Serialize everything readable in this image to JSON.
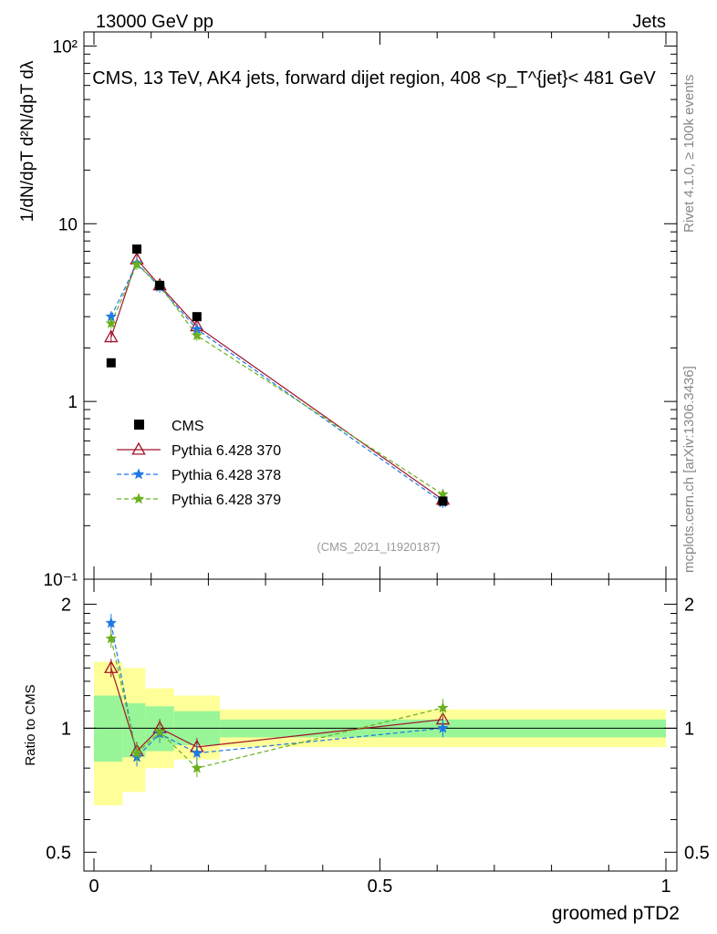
{
  "header": {
    "energy_label": "13000 GeV pp",
    "category": "Jets",
    "analysis_tag": "(CMS_2021_I1920187)"
  },
  "side_labels": {
    "rivet": "Rivet 4.1.0, ≥ 100k events",
    "mcplots": "mcplots.cern.ch [arXiv:1306.3436]"
  },
  "chart_data": {
    "type": "line",
    "title": "CMS, 13 TeV, AK4 jets, forward dijet region, 408 <p_T^{jet}< 481 GeV",
    "xlabel": "groomed pTD2",
    "ylabel": "1/dN/dpT  d²N/dpT dλ",
    "yscale": "log",
    "xlim": [
      0,
      1
    ],
    "ylim": [
      0.1,
      120
    ],
    "x_ticks": [
      "0",
      "0.5",
      "1"
    ],
    "y_ticks": [
      "10⁻¹",
      "1",
      "10",
      "10²"
    ],
    "x": [
      0.03,
      0.075,
      0.115,
      0.18,
      0.61
    ],
    "data": {
      "name": "CMS",
      "values": [
        1.65,
        7.2,
        4.5,
        3.0,
        0.275
      ],
      "color": "#000000"
    },
    "series": [
      {
        "name": "Pythia 6.428 370",
        "values": [
          2.3,
          6.3,
          4.5,
          2.65,
          0.28
        ],
        "color": "#a0142a",
        "style": "solid",
        "marker": "triangle"
      },
      {
        "name": "Pythia 6.428 378",
        "values": [
          3.0,
          6.0,
          4.4,
          2.55,
          0.27
        ],
        "color": "#1e78e6",
        "style": "dashed",
        "marker": "star"
      },
      {
        "name": "Pythia 6.428 379",
        "values": [
          2.75,
          5.9,
          4.5,
          2.35,
          0.3
        ],
        "color": "#6ab01e",
        "style": "dashed",
        "marker": "star"
      }
    ],
    "ratio": {
      "ylabel": "Ratio to CMS",
      "ylim": [
        0.45,
        2.3
      ],
      "y_ticks": [
        "0.5",
        "1",
        "2"
      ],
      "series": [
        {
          "name": "Pythia 6.428 370",
          "values": [
            1.4,
            0.88,
            1.0,
            0.9,
            1.05
          ]
        },
        {
          "name": "Pythia 6.428 378",
          "values": [
            1.8,
            0.85,
            0.97,
            0.87,
            1.0
          ]
        },
        {
          "name": "Pythia 6.428 379",
          "values": [
            1.65,
            0.87,
            0.98,
            0.8,
            1.12
          ]
        }
      ],
      "bands": [
        {
          "x0": 0.0,
          "x1": 0.05,
          "inner": [
            0.83,
            1.2
          ],
          "outer": [
            0.65,
            1.45
          ]
        },
        {
          "x0": 0.05,
          "x1": 0.09,
          "inner": [
            0.85,
            1.15
          ],
          "outer": [
            0.7,
            1.4
          ]
        },
        {
          "x0": 0.09,
          "x1": 0.14,
          "inner": [
            0.88,
            1.13
          ],
          "outer": [
            0.8,
            1.25
          ]
        },
        {
          "x0": 0.14,
          "x1": 0.22,
          "inner": [
            0.91,
            1.1
          ],
          "outer": [
            0.84,
            1.2
          ]
        },
        {
          "x0": 0.22,
          "x1": 1.0,
          "inner": [
            0.95,
            1.05
          ],
          "outer": [
            0.9,
            1.11
          ]
        }
      ]
    },
    "colors": {
      "inner_band": "#98f598",
      "outer_band": "#ffff99"
    }
  }
}
